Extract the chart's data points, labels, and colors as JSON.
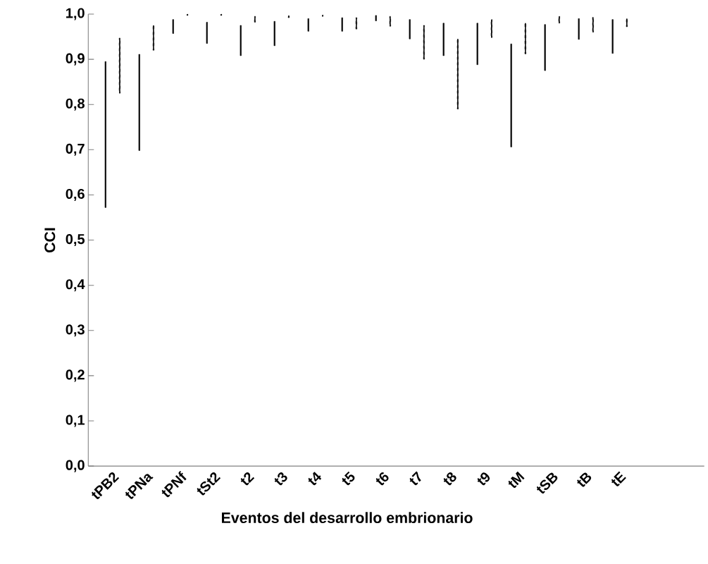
{
  "chart_data": {
    "type": "bar",
    "xlabel": "Eventos del desarrollo embrionario",
    "ylabel": "CCI",
    "categories": [
      "tPB2",
      "tPNa",
      "tPNf",
      "tSt2",
      "t2",
      "t3",
      "t4",
      "t5",
      "t6",
      "t7",
      "t8",
      "t9",
      "tM",
      "tSB",
      "tB",
      "tE"
    ],
    "ylim": [
      0,
      1
    ],
    "yticks": [
      {
        "value": 0,
        "label": "0,0"
      },
      {
        "value": 0.1,
        "label": "0,1"
      },
      {
        "value": 0.2,
        "label": "0,2"
      },
      {
        "value": 0.3,
        "label": "0,3"
      },
      {
        "value": 0.4,
        "label": "0,4"
      },
      {
        "value": 0.5,
        "label": "0,5"
      },
      {
        "value": 0.6,
        "label": "0,6"
      },
      {
        "value": 0.7,
        "label": "0,7"
      },
      {
        "value": 0.8,
        "label": "0,8"
      },
      {
        "value": 0.9,
        "label": "0,9"
      },
      {
        "value": 1,
        "label": "1,0"
      }
    ],
    "series": [
      {
        "color": "#000000",
        "line_style": "solid",
        "base": [
          0.572,
          0.698,
          0.957,
          0.935,
          0.908,
          0.93,
          0.962,
          0.962,
          0.985,
          0.945,
          0.908,
          0.888,
          0.706,
          0.875,
          0.944,
          0.913
        ],
        "values": [
          0.323,
          0.213,
          0.031,
          0.047,
          0.067,
          0.054,
          0.028,
          0.03,
          0.012,
          0.043,
          0.072,
          0.092,
          0.228,
          0.102,
          0.046,
          0.075
        ]
      },
      {
        "color": "#000000",
        "line_style": "dashed",
        "base": [
          0.825,
          0.92,
          0.997,
          0.997,
          0.982,
          0.992,
          0.995,
          0.967,
          0.973,
          0.9,
          0.79,
          0.948,
          0.912,
          0.98,
          0.96,
          0.972
        ],
        "values": [
          0.122,
          0.055,
          0.003,
          0.003,
          0.013,
          0.005,
          0.003,
          0.025,
          0.022,
          0.075,
          0.155,
          0.04,
          0.068,
          0.015,
          0.033,
          0.018
        ]
      }
    ]
  }
}
